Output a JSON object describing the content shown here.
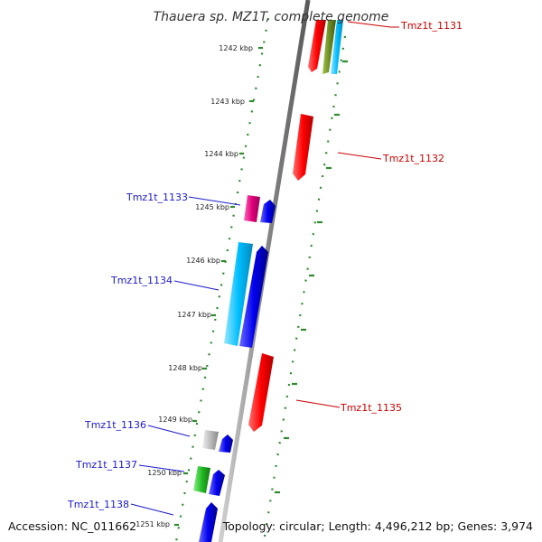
{
  "title": "Thauera sp. MZ1T, complete genome",
  "footer": {
    "accession": "Accession: NC_011662",
    "topology": "Topology: circular; Length: 4,496,212 bp; Genes: 3,974"
  },
  "ticks": [
    "1242 kbp",
    "1243 kbp",
    "1244 kbp",
    "1245 kbp",
    "1246 kbp",
    "1247 kbp",
    "1248 kbp",
    "1249 kbp",
    "1250 kbp",
    "1251 kbp"
  ],
  "gene_labels": {
    "tmzlt_1131": "Tmz1t_1131",
    "tmzlt_1132": "Tmz1t_1132",
    "tmzlt_1133": "Tmz1t_1133",
    "tmzlt_1134": "Tmz1t_1134",
    "tmzlt_1135": "Tmz1t_1135",
    "tmzlt_1136": "Tmz1t_1136",
    "tmzlt_1137": "Tmz1t_1137",
    "tmzlt_1138": "Tmz1t_1138"
  },
  "colors": {
    "backbone": "#8a8a8a",
    "dots": "#2e8b2e",
    "red": "#ff0000",
    "blue": "#0000ee",
    "cyan": "#00bfff",
    "magenta": "#e0007a",
    "green": "#22bb22",
    "olive": "#6b8e23",
    "gray": "#b0b0b0",
    "label_red": "#cc0000",
    "label_blue": "#1a1acc"
  }
}
